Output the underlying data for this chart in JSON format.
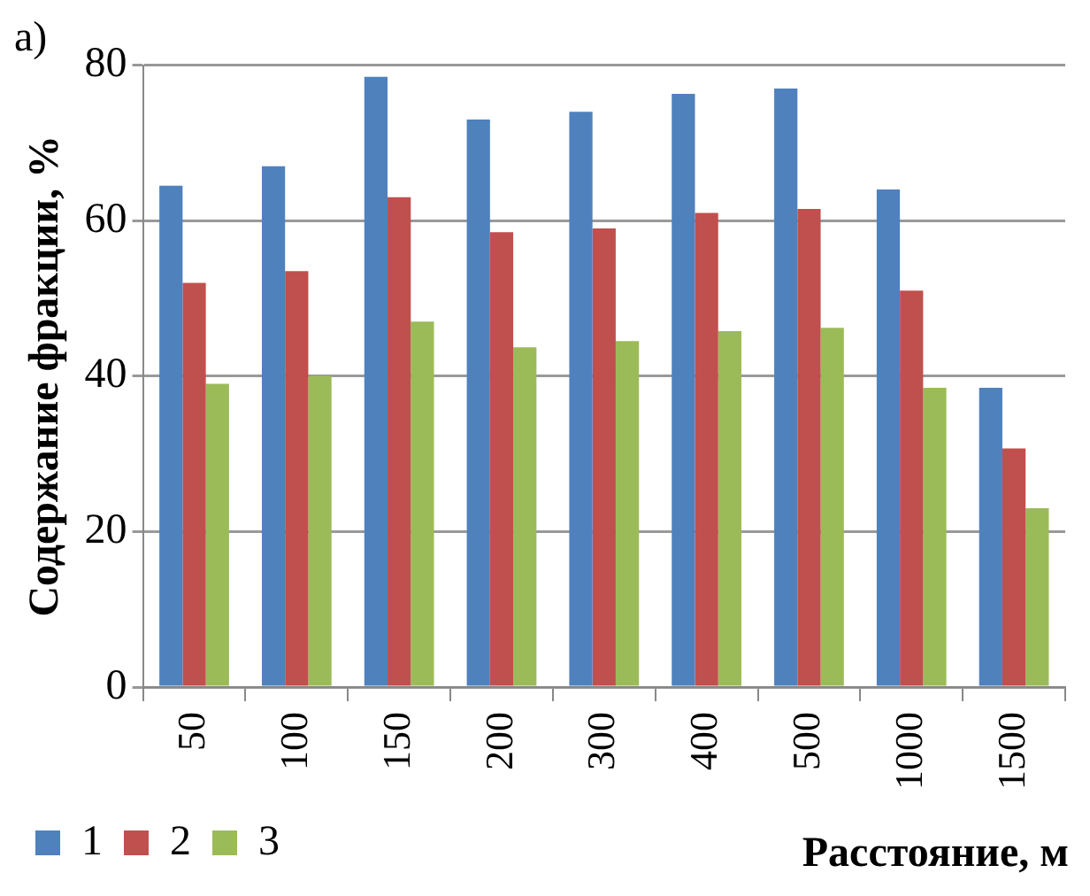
{
  "chart_data": {
    "type": "bar",
    "title": "a)",
    "xlabel": "Расстояние, м",
    "ylabel": "Содержание фракции, %",
    "categories": [
      "50",
      "100",
      "150",
      "200",
      "300",
      "400",
      "500",
      "1000",
      "1500"
    ],
    "series": [
      {
        "name": "1",
        "color": "#4f81bd",
        "values": [
          64.5,
          67,
          78.5,
          73,
          74,
          76.3,
          77,
          64,
          38.5
        ]
      },
      {
        "name": "2",
        "color": "#c0504d",
        "values": [
          52,
          53.5,
          63,
          58.5,
          59,
          61,
          61.5,
          51,
          30.7
        ]
      },
      {
        "name": "3",
        "color": "#9bbb59",
        "values": [
          39,
          40,
          47,
          43.7,
          44.5,
          45.8,
          46.2,
          38.5,
          23
        ]
      }
    ],
    "ylim": [
      0,
      80
    ],
    "yticks": [
      0,
      20,
      40,
      60,
      80
    ],
    "grid": "y",
    "legend": "bottom"
  }
}
